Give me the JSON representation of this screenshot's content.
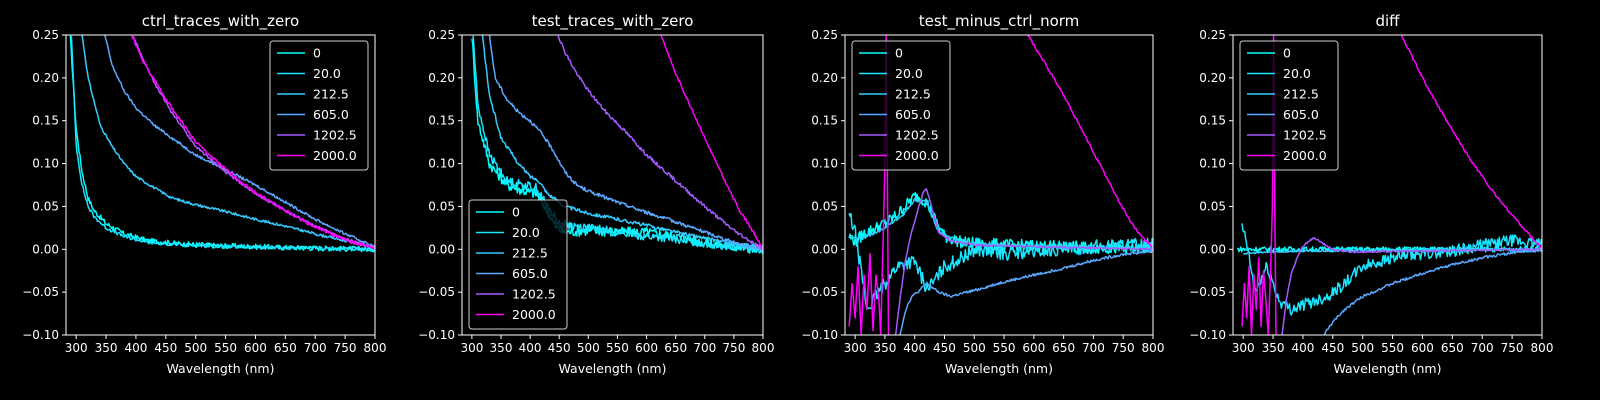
{
  "figure": {
    "background": "#000000",
    "foreground": "#ffffff"
  },
  "chart_data": [
    {
      "type": "line",
      "title": "ctrl_traces_with_zero",
      "xlabel": "Wavelength (nm)",
      "ylabel": "",
      "xlim": [
        283,
        800
      ],
      "ylim": [
        -0.1,
        0.25
      ],
      "xticks": [
        300,
        350,
        400,
        450,
        500,
        550,
        600,
        650,
        700,
        750,
        800
      ],
      "yticks": [
        -0.1,
        -0.05,
        0.0,
        0.05,
        0.1,
        0.15,
        0.2,
        0.25
      ],
      "grid": false,
      "legend": {
        "position": "top-right",
        "entries": [
          "0",
          "20.0",
          "212.5",
          "605.0",
          "1202.5",
          "2000.0"
        ]
      },
      "series": [
        {
          "name": "0",
          "color": "#00ffff",
          "noise": 0.003,
          "x": [
            290,
            300,
            310,
            320,
            330,
            350,
            380,
            420,
            480,
            550,
            650,
            800
          ],
          "y": [
            0.25,
            0.14,
            0.09,
            0.06,
            0.045,
            0.03,
            0.018,
            0.01,
            0.006,
            0.004,
            0.002,
            0.0
          ]
        },
        {
          "name": "20.0",
          "color": "#1ae5ff",
          "noise": 0.002,
          "x": [
            292,
            300,
            310,
            320,
            330,
            350,
            380,
            420,
            480,
            550,
            650,
            800
          ],
          "y": [
            0.25,
            0.12,
            0.075,
            0.05,
            0.038,
            0.025,
            0.015,
            0.008,
            0.005,
            0.003,
            0.002,
            0.0
          ]
        },
        {
          "name": "212.5",
          "color": "#33ccff",
          "noise": 0.0015,
          "x": [
            310,
            320,
            340,
            360,
            380,
            400,
            430,
            460,
            500,
            550,
            600,
            650,
            700,
            750,
            800
          ],
          "y": [
            0.25,
            0.2,
            0.145,
            0.12,
            0.1,
            0.085,
            0.072,
            0.06,
            0.052,
            0.044,
            0.035,
            0.027,
            0.018,
            0.01,
            0.002
          ]
        },
        {
          "name": "605.0",
          "color": "#5aa9ff",
          "noise": 0.0015,
          "x": [
            348,
            360,
            380,
            400,
            430,
            460,
            500,
            550,
            600,
            650,
            700,
            750,
            800
          ],
          "y": [
            0.25,
            0.215,
            0.185,
            0.165,
            0.145,
            0.13,
            0.11,
            0.093,
            0.075,
            0.055,
            0.035,
            0.018,
            0.003
          ]
        },
        {
          "name": "1202.5",
          "color": "#a55aff",
          "noise": 0.0015,
          "x": [
            395,
            410,
            430,
            460,
            500,
            550,
            600,
            650,
            700,
            750,
            800
          ],
          "y": [
            0.25,
            0.225,
            0.195,
            0.16,
            0.12,
            0.09,
            0.065,
            0.045,
            0.027,
            0.012,
            0.002
          ]
        },
        {
          "name": "2000.0",
          "color": "#ff00ff",
          "noise": 0.002,
          "x": [
            393,
            410,
            430,
            460,
            500,
            550,
            600,
            650,
            700,
            750,
            800
          ],
          "y": [
            0.25,
            0.222,
            0.198,
            0.165,
            0.125,
            0.093,
            0.066,
            0.045,
            0.026,
            0.011,
            0.001
          ]
        }
      ]
    },
    {
      "type": "line",
      "title": "test_traces_with_zero",
      "xlabel": "Wavelength (nm)",
      "ylabel": "",
      "xlim": [
        283,
        800
      ],
      "ylim": [
        -0.1,
        0.25
      ],
      "xticks": [
        300,
        350,
        400,
        450,
        500,
        550,
        600,
        650,
        700,
        750,
        800
      ],
      "yticks": [
        -0.1,
        -0.05,
        0.0,
        0.05,
        0.1,
        0.15,
        0.2,
        0.25
      ],
      "grid": false,
      "legend": {
        "position": "bottom-left",
        "entries": [
          "0",
          "20.0",
          "212.5",
          "605.0",
          "1202.5",
          "2000.0"
        ]
      },
      "series": [
        {
          "name": "0",
          "color": "#00ffff",
          "noise": 0.006,
          "x": [
            300,
            310,
            330,
            360,
            390,
            410,
            430,
            445,
            460,
            500,
            550,
            600,
            650,
            700,
            750,
            800
          ],
          "y": [
            0.25,
            0.15,
            0.1,
            0.075,
            0.068,
            0.065,
            0.045,
            0.025,
            0.02,
            0.022,
            0.02,
            0.02,
            0.015,
            0.008,
            0.003,
            0.0
          ]
        },
        {
          "name": "20.0",
          "color": "#1ae5ff",
          "noise": 0.005,
          "x": [
            302,
            310,
            330,
            360,
            390,
            410,
            430,
            450,
            500,
            550,
            600,
            650,
            700,
            750,
            800
          ],
          "y": [
            0.25,
            0.17,
            0.11,
            0.08,
            0.075,
            0.072,
            0.05,
            0.03,
            0.025,
            0.02,
            0.015,
            0.012,
            0.007,
            0.003,
            0.0
          ]
        },
        {
          "name": "212.5",
          "color": "#33ccff",
          "noise": 0.002,
          "x": [
            318,
            330,
            350,
            380,
            400,
            415,
            430,
            460,
            500,
            550,
            600,
            650,
            700,
            750,
            800
          ],
          "y": [
            0.25,
            0.18,
            0.13,
            0.1,
            0.085,
            0.08,
            0.065,
            0.05,
            0.042,
            0.035,
            0.028,
            0.02,
            0.013,
            0.006,
            0.0
          ]
        },
        {
          "name": "605.0",
          "color": "#5aa9ff",
          "noise": 0.002,
          "x": [
            330,
            340,
            360,
            380,
            400,
            420,
            440,
            460,
            480,
            500,
            550,
            600,
            650,
            700,
            750,
            800
          ],
          "y": [
            0.25,
            0.2,
            0.175,
            0.16,
            0.15,
            0.135,
            0.115,
            0.09,
            0.075,
            0.068,
            0.055,
            0.043,
            0.032,
            0.02,
            0.008,
            0.0
          ]
        },
        {
          "name": "1202.5",
          "color": "#a55aff",
          "noise": 0.002,
          "x": [
            448,
            460,
            480,
            500,
            530,
            560,
            600,
            650,
            700,
            750,
            800
          ],
          "y": [
            0.25,
            0.23,
            0.205,
            0.185,
            0.16,
            0.14,
            0.11,
            0.08,
            0.05,
            0.022,
            0.0
          ]
        },
        {
          "name": "2000.0",
          "color": "#ff00ff",
          "noise": 0.0015,
          "x": [
            625,
            650,
            680,
            710,
            740,
            760,
            775,
            790,
            800
          ],
          "y": [
            0.25,
            0.205,
            0.16,
            0.115,
            0.072,
            0.045,
            0.03,
            0.012,
            0.0
          ]
        }
      ]
    },
    {
      "type": "line",
      "title": "test_minus_ctrl_norm",
      "xlabel": "Wavelength (nm)",
      "ylabel": "",
      "xlim": [
        283,
        800
      ],
      "ylim": [
        -0.1,
        0.25
      ],
      "xticks": [
        300,
        350,
        400,
        450,
        500,
        550,
        600,
        650,
        700,
        750,
        800
      ],
      "yticks": [
        -0.1,
        -0.05,
        0.0,
        0.05,
        0.1,
        0.15,
        0.2,
        0.25
      ],
      "grid": false,
      "legend": {
        "position": "top-left",
        "entries": [
          "0",
          "20.0",
          "212.5",
          "605.0",
          "1202.5",
          "2000.0"
        ]
      },
      "series": [
        {
          "name": "0",
          "color": "#00ffff",
          "noise": 0.007,
          "x": [
            290,
            300,
            320,
            350,
            370,
            390,
            400,
            410,
            420,
            430,
            450,
            480,
            550,
            650,
            800
          ],
          "y": [
            0.015,
            0.01,
            0.02,
            0.03,
            0.04,
            0.055,
            0.062,
            0.06,
            0.055,
            0.04,
            0.015,
            0.008,
            0.005,
            0.003,
            0.0
          ]
        },
        {
          "name": "20.0",
          "color": "#1ae5ff",
          "noise": 0.008,
          "x": [
            290,
            300,
            320,
            350,
            370,
            390,
            400,
            410,
            420,
            430,
            450,
            480,
            500,
            550,
            600,
            650,
            700,
            750,
            800
          ],
          "y": [
            0.04,
            0.02,
            -0.07,
            -0.04,
            -0.02,
            -0.015,
            -0.015,
            -0.03,
            -0.045,
            -0.04,
            -0.02,
            -0.01,
            0.0,
            -0.005,
            -0.003,
            0.0,
            0.003,
            0.005,
            0.005
          ]
        },
        {
          "name": "212.5",
          "color": "#33ccff",
          "noise": 0.0015,
          "x": [
            292,
            300,
            320,
            350,
            380,
            400,
            420,
            440,
            480,
            550,
            650,
            800
          ],
          "y": [
            0.015,
            0.012,
            0.015,
            0.025,
            0.04,
            0.058,
            0.055,
            0.02,
            0.008,
            0.005,
            0.003,
            0.001
          ]
        },
        {
          "name": "605.0",
          "color": "#5aa9ff",
          "noise": 0.0015,
          "x": [
            375,
            385,
            395,
            405,
            420,
            440,
            460,
            500,
            550,
            600,
            650,
            700,
            750,
            800
          ],
          "y": [
            -0.1,
            -0.07,
            -0.055,
            -0.05,
            -0.04,
            -0.05,
            -0.055,
            -0.048,
            -0.038,
            -0.03,
            -0.022,
            -0.013,
            -0.006,
            -0.002
          ]
        },
        {
          "name": "1202.5",
          "color": "#a55aff",
          "noise": 0.001,
          "x": [
            368,
            375,
            385,
            395,
            405,
            415,
            420,
            430,
            440,
            460,
            500,
            600,
            800
          ],
          "y": [
            -0.1,
            -0.06,
            -0.01,
            0.02,
            0.045,
            0.068,
            0.07,
            0.045,
            0.02,
            0.01,
            0.005,
            0.003,
            0.0
          ]
        },
        {
          "name": "2000.0",
          "color": "#ff00ff",
          "noise": 0.0,
          "x": [
            290,
            295,
            300,
            305,
            310,
            315,
            320,
            325,
            330,
            335,
            340,
            343,
            347,
            350,
            352,
            354,
            356
          ],
          "y": [
            -0.09,
            -0.04,
            -0.08,
            -0.02,
            -0.1,
            -0.03,
            -0.07,
            -0.005,
            -0.095,
            -0.03,
            -0.06,
            -0.1,
            0.01,
            0.1,
            0.25,
            0.1,
            -0.1
          ],
          "x2": [
            590,
            620,
            650,
            680,
            710,
            740,
            760,
            780,
            800
          ],
          "y2": [
            0.25,
            0.215,
            0.18,
            0.14,
            0.1,
            0.06,
            0.035,
            0.015,
            0.002
          ]
        }
      ]
    },
    {
      "type": "line",
      "title": "diff",
      "xlabel": "Wavelength (nm)",
      "ylabel": "",
      "xlim": [
        283,
        800
      ],
      "ylim": [
        -0.1,
        0.25
      ],
      "xticks": [
        300,
        350,
        400,
        450,
        500,
        550,
        600,
        650,
        700,
        750,
        800
      ],
      "yticks": [
        -0.1,
        -0.05,
        0.0,
        0.05,
        0.1,
        0.15,
        0.2,
        0.25
      ],
      "grid": false,
      "legend": {
        "position": "top-left",
        "entries": [
          "0",
          "20.0",
          "212.5",
          "605.0",
          "1202.5",
          "2000.0"
        ]
      },
      "series": [
        {
          "name": "0",
          "color": "#00ffff",
          "noise": 0.003,
          "x": [
            290,
            300,
            350,
            400,
            500,
            600,
            700,
            800
          ],
          "y": [
            0.0,
            0.0,
            0.0,
            0.0,
            0.0,
            0.0,
            0.0,
            0.0
          ]
        },
        {
          "name": "20.0",
          "color": "#1ae5ff",
          "noise": 0.007,
          "x": [
            298,
            305,
            320,
            340,
            360,
            380,
            400,
            420,
            440,
            470,
            500,
            550,
            600,
            650,
            700,
            750,
            800
          ],
          "y": [
            0.025,
            0.01,
            -0.05,
            -0.02,
            -0.06,
            -0.07,
            -0.065,
            -0.06,
            -0.055,
            -0.04,
            -0.02,
            -0.01,
            -0.005,
            -0.002,
            0.005,
            0.01,
            0.005
          ]
        },
        {
          "name": "212.5",
          "color": "#33ccff",
          "noise": 0.001,
          "x": [
            300,
            350,
            400,
            450,
            500,
            600,
            700,
            800
          ],
          "y": [
            -0.005,
            -0.003,
            -0.002,
            -0.002,
            -0.001,
            -0.001,
            0.0,
            0.0
          ]
        },
        {
          "name": "605.0",
          "color": "#5aa9ff",
          "noise": 0.0015,
          "x": [
            435,
            450,
            470,
            500,
            550,
            600,
            650,
            700,
            750,
            800
          ],
          "y": [
            -0.1,
            -0.085,
            -0.07,
            -0.055,
            -0.04,
            -0.028,
            -0.018,
            -0.01,
            -0.004,
            -0.001
          ]
        },
        {
          "name": "1202.5",
          "color": "#a55aff",
          "noise": 0.001,
          "x": [
            365,
            372,
            380,
            390,
            400,
            410,
            420,
            430,
            450,
            480,
            500,
            600,
            800
          ],
          "y": [
            -0.1,
            -0.06,
            -0.03,
            -0.01,
            0.003,
            0.01,
            0.013,
            0.008,
            0.0,
            -0.003,
            -0.003,
            -0.002,
            0.0
          ]
        },
        {
          "name": "2000.0",
          "color": "#ff00ff",
          "noise": 0.0,
          "x": [
            298,
            302,
            306,
            310,
            314,
            318,
            322,
            326,
            330,
            334,
            338,
            342,
            346,
            349,
            351,
            353,
            355
          ],
          "y": [
            -0.09,
            -0.04,
            -0.08,
            -0.02,
            -0.1,
            -0.03,
            -0.07,
            -0.01,
            -0.09,
            -0.025,
            -0.06,
            -0.1,
            -0.02,
            0.05,
            0.25,
            0.05,
            -0.1
          ],
          "x2": [
            565,
            600,
            640,
            680,
            720,
            750,
            775,
            790,
            800
          ],
          "y2": [
            0.25,
            0.2,
            0.15,
            0.105,
            0.065,
            0.04,
            0.02,
            0.008,
            0.002
          ]
        }
      ]
    }
  ]
}
